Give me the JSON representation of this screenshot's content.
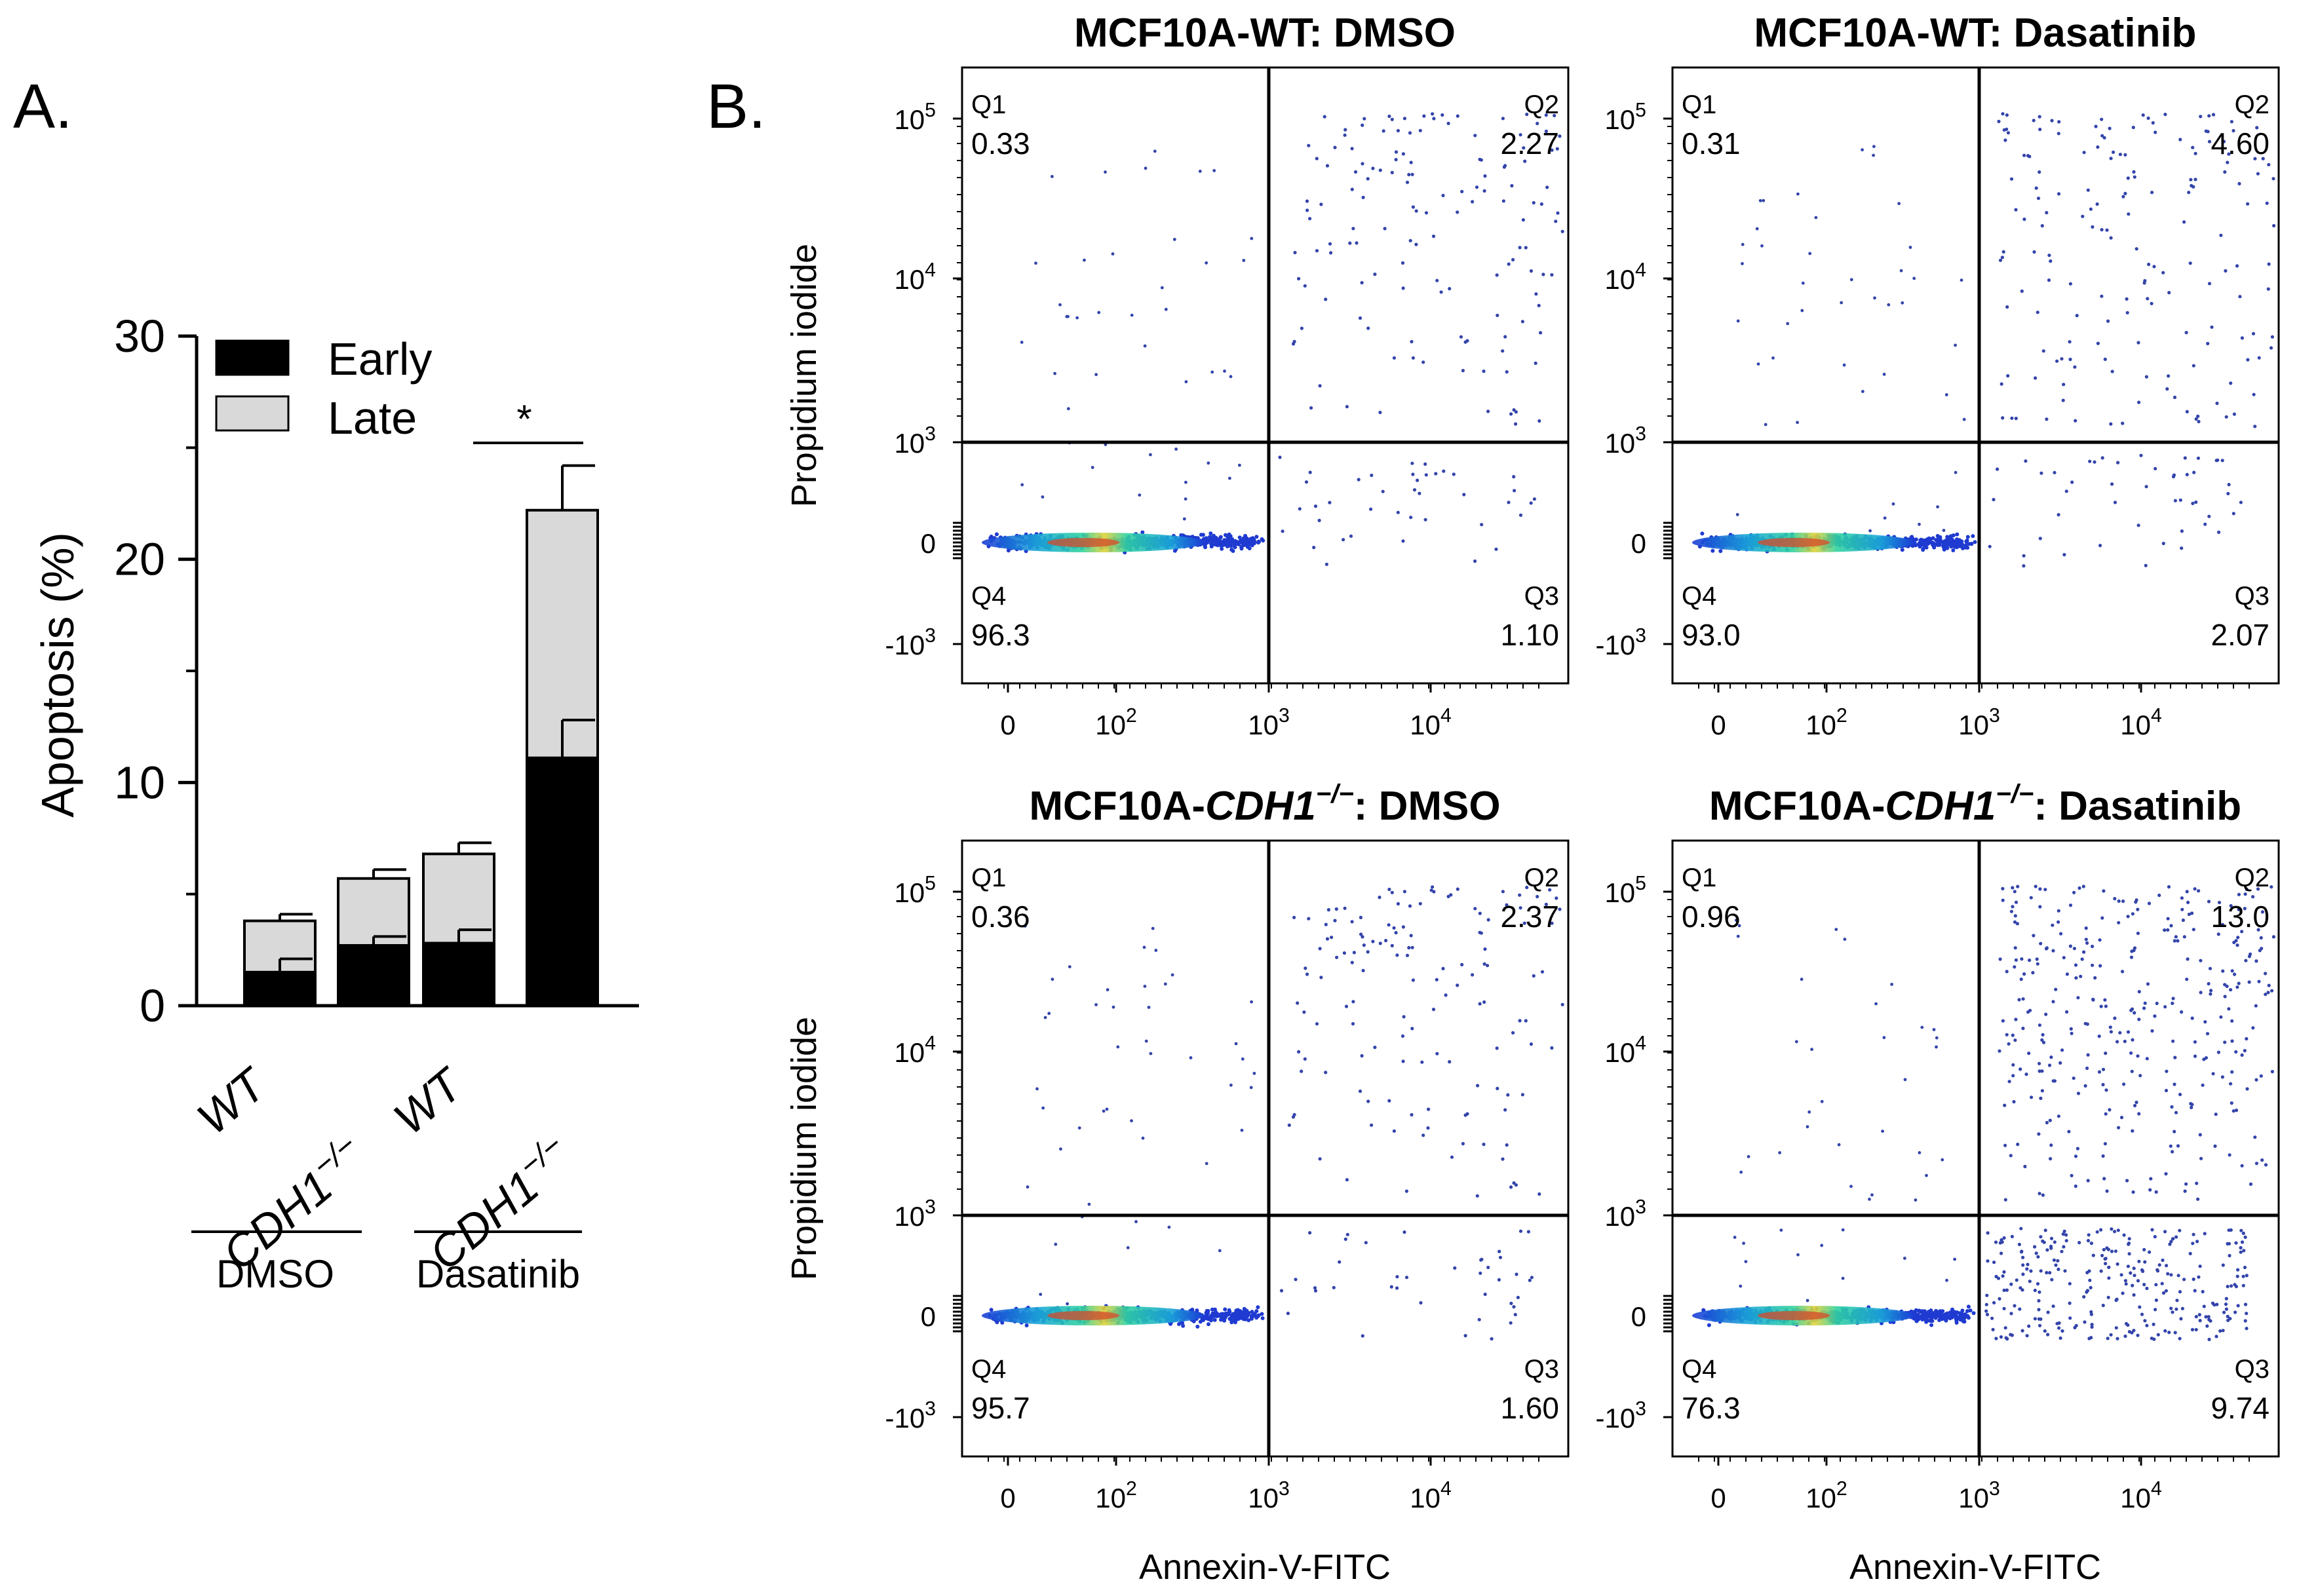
{
  "panels": {
    "a_label": "A.",
    "b_label": "B."
  },
  "chart_data": [
    {
      "type": "bar",
      "stacked": true,
      "ylabel": "Apoptosis (%)",
      "ylim": [
        0,
        30
      ],
      "yticks": [
        0,
        10,
        20,
        30
      ],
      "categories": [
        "WT",
        "CDH1",
        "WT",
        "CDH1"
      ],
      "category_sup": [
        "",
        "−/−",
        "",
        "−/−"
      ],
      "groups": [
        {
          "label": "DMSO",
          "members": [
            0,
            1
          ]
        },
        {
          "label": "Dasatinib",
          "members": [
            2,
            3
          ]
        }
      ],
      "series": [
        {
          "name": "Early",
          "color": "#000000",
          "values": [
            1.5,
            2.7,
            2.8,
            11.1
          ],
          "error": [
            0.6,
            0.4,
            0.6,
            1.7
          ]
        },
        {
          "name": "Late",
          "color": "#d9d9d9",
          "values": [
            2.3,
            3.0,
            4.0,
            11.1
          ],
          "error": [
            0.3,
            0.4,
            0.5,
            2.0
          ]
        }
      ],
      "significance": {
        "label": "*",
        "between": [
          2,
          3
        ]
      }
    },
    {
      "type": "scatter",
      "subtype": "flow-cytometry-quadrant",
      "xlabel": "Annexin-V-FITC",
      "ylabel": "Propidium iodide",
      "x_ticks": [
        "0",
        "10^2",
        "10^3",
        "10^4"
      ],
      "y_ticks": [
        "-10^3",
        "0",
        "10^3",
        "10^4",
        "10^5"
      ],
      "plots": [
        {
          "title_pre": "MCF10A-WT",
          "title_ital": "",
          "title_sup": "",
          "title_post": ": DMSO",
          "quadrants": {
            "Q1": "0.33",
            "Q2": "2.27",
            "Q3": "1.10",
            "Q4": "96.3"
          }
        },
        {
          "title_pre": "MCF10A-WT",
          "title_ital": "",
          "title_sup": "",
          "title_post": ": Dasatinib",
          "quadrants": {
            "Q1": "0.31",
            "Q2": "4.60",
            "Q3": "2.07",
            "Q4": "93.0"
          }
        },
        {
          "title_pre": "MCF10A-",
          "title_ital": "CDH1",
          "title_sup": "−/−",
          "title_post": ": DMSO",
          "quadrants": {
            "Q1": "0.36",
            "Q2": "2.37",
            "Q3": "1.60",
            "Q4": "95.7"
          }
        },
        {
          "title_pre": "MCF10A-",
          "title_ital": "CDH1",
          "title_sup": "−/−",
          "title_post": ": Dasatinib",
          "quadrants": {
            "Q1": "0.96",
            "Q2": "13.0",
            "Q3": "9.74",
            "Q4": "76.3"
          }
        }
      ]
    }
  ],
  "quadrant_names": {
    "q1": "Q1",
    "q2": "Q2",
    "q3": "Q3",
    "q4": "Q4"
  }
}
